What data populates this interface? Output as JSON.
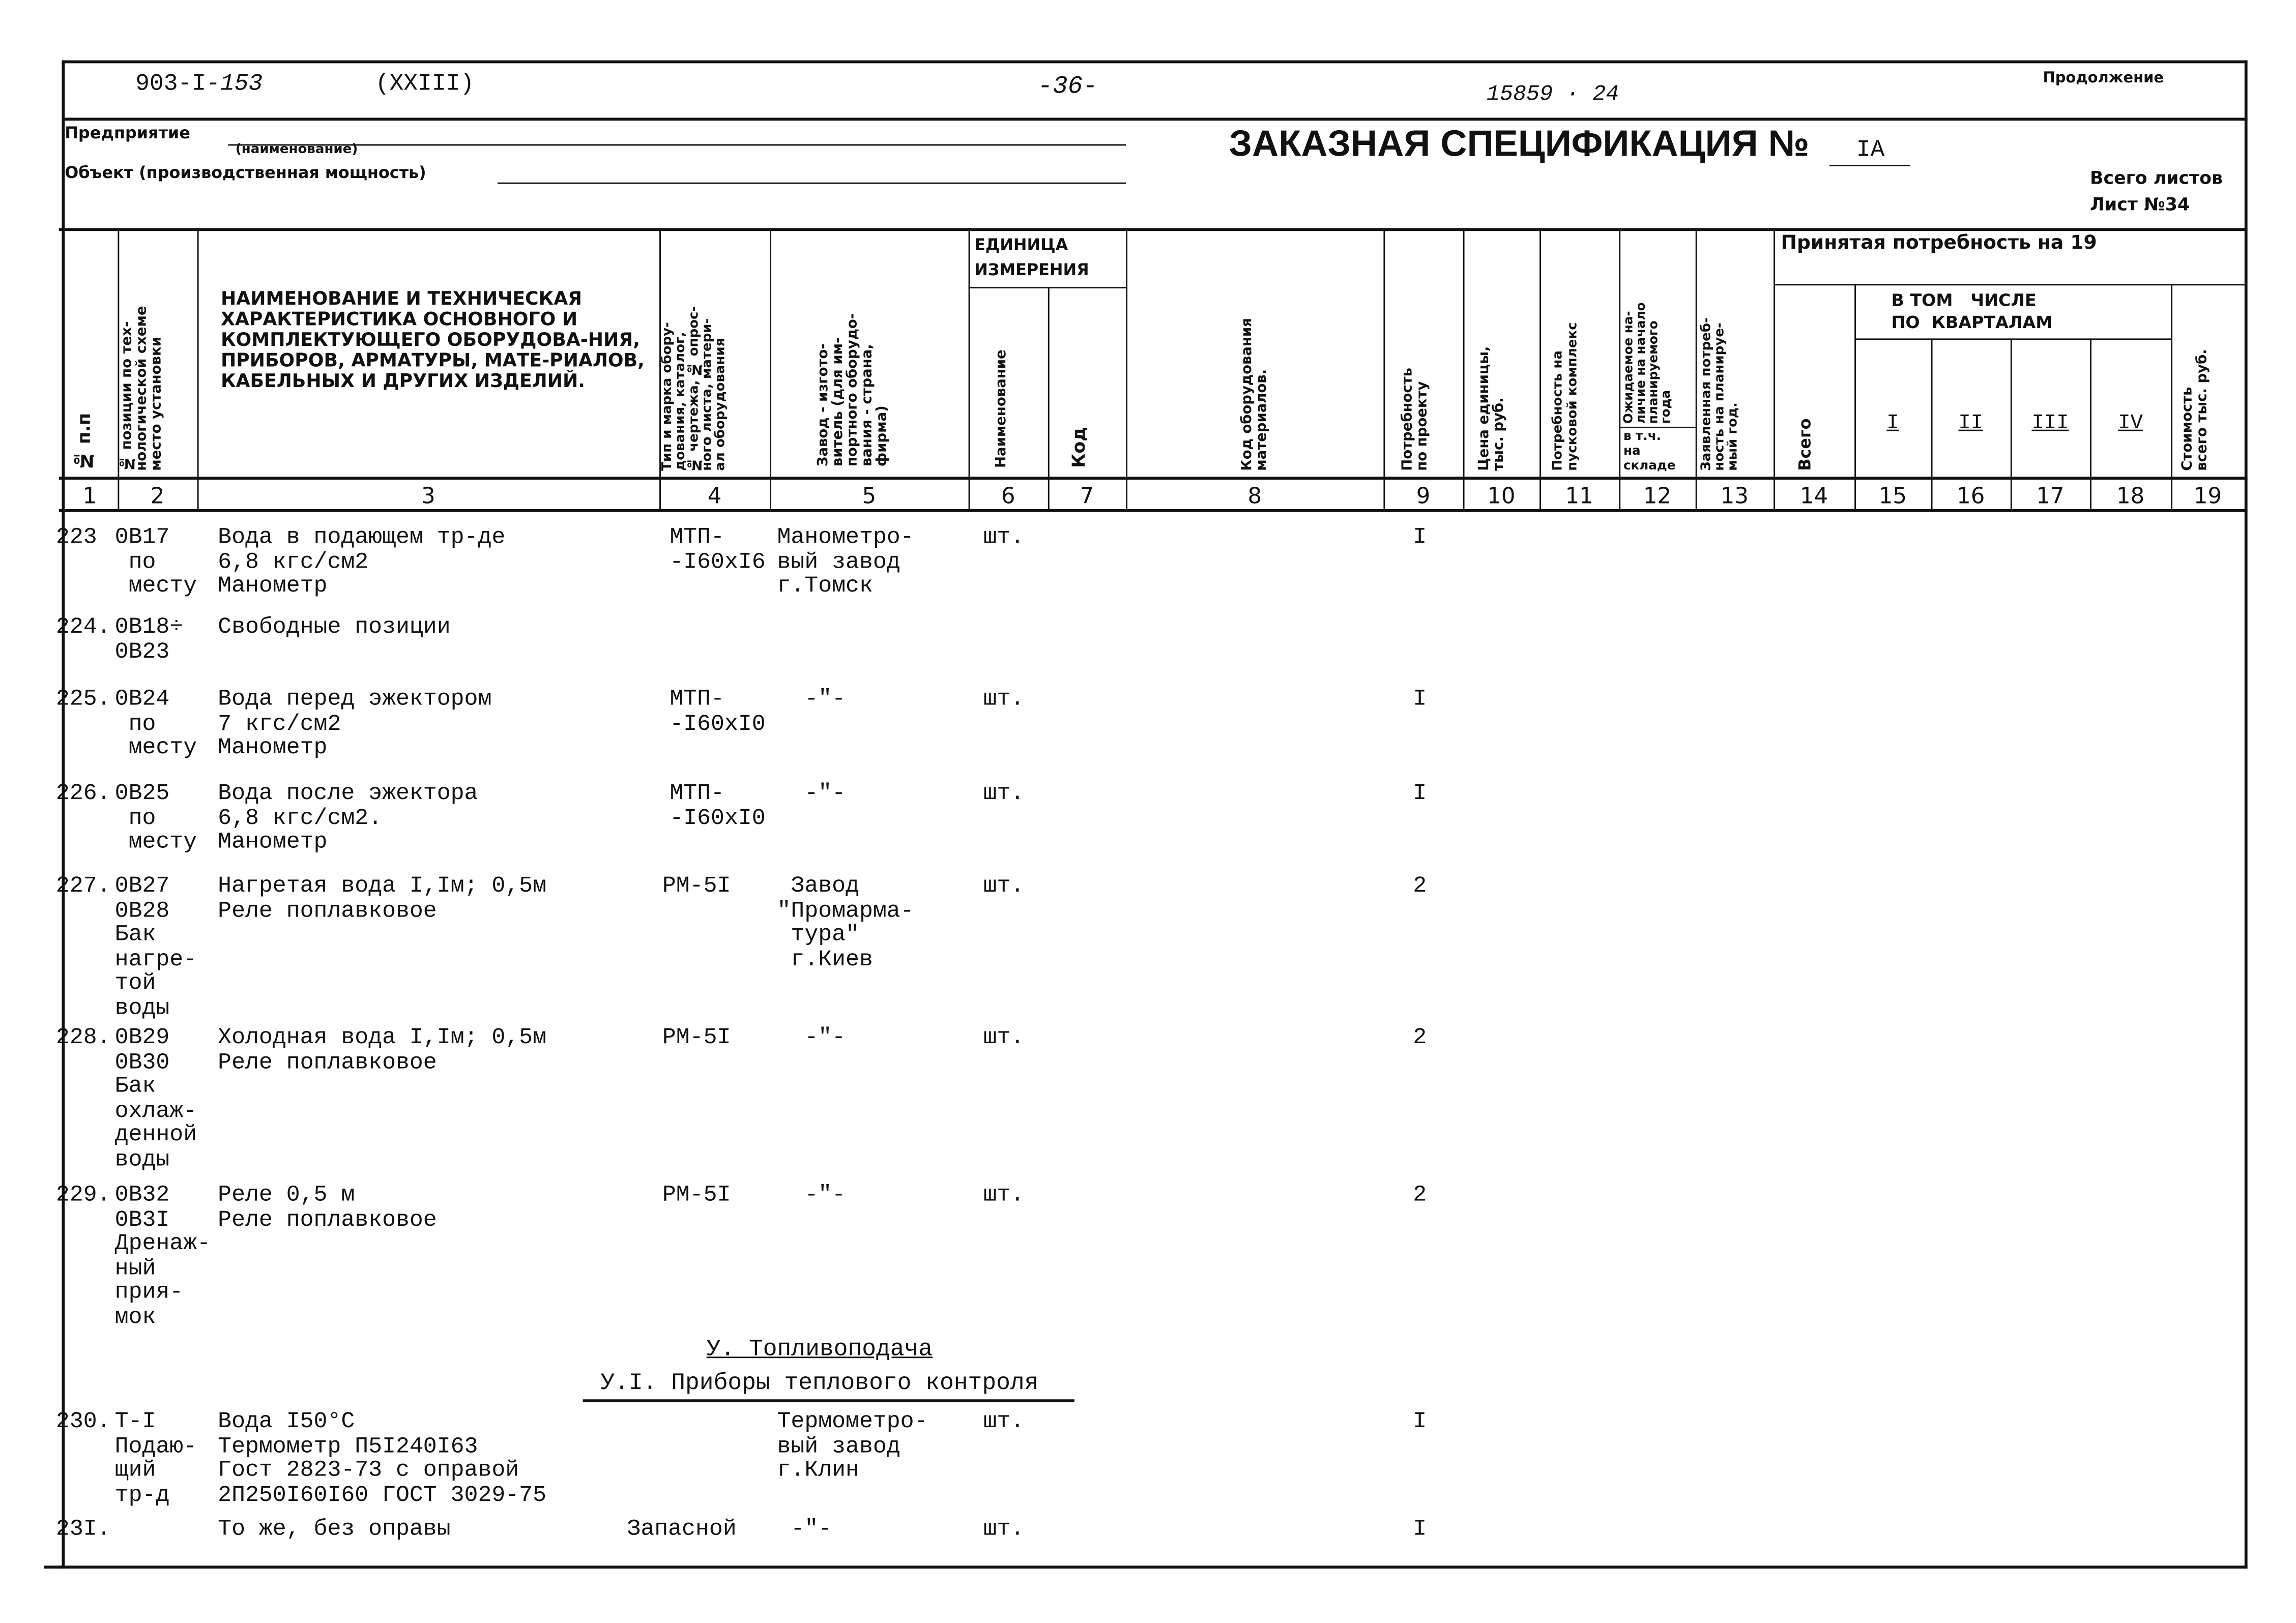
{
  "header": {
    "doc_code": "903-I-",
    "doc_code_hand": "153",
    "volume": "(XXIII)",
    "page": "-36-",
    "inv": "15859 · 24",
    "continuation": "Продолжение",
    "enterprise_label": "Предприятие",
    "enterprise_caption": "(наименование)",
    "object_label": "Объект  (производственная мощность)",
    "title": "ЗАКАЗНАЯ СПЕЦИФИКАЦИЯ №",
    "spec_no": "IA",
    "sheets_total": "Всего листов",
    "sheet_label": "Лист №",
    "sheet_no": "34"
  },
  "columns": {
    "c1": "№ п.п",
    "c2": "№ позиции по тех-\nнологической схеме\nместо установки",
    "c3": "НАИМЕНОВАНИЕ И ТЕХНИЧЕСКАЯ ХАРАКТЕРИСТИКА ОСНОВНОГО И КОМПЛЕКТУЮЩЕГО ОБОРУДОВА-НИЯ, ПРИБОРОВ, АРМАТУРЫ, МАТЕ-РИАЛОВ, КАБЕЛЬНЫХ И ДРУГИХ ИЗДЕЛИЙ.",
    "c4": "Тип и марка обору-\nдования, каталог,\n№ чертежа, № опрос-\nного листа, матери-\nал оборудования",
    "c5": "Завод - изгото-\nвитель (для им-\nпортного оборудо-\nвания - страна,\nфирма)",
    "unit": "ЕДИНИЦА ИЗМЕРЕНИЯ",
    "c6": "Наименование",
    "c7": "Код",
    "c8": "Код оборудования\nматериалов.",
    "c9": "Потребность\nпо проекту",
    "c10": "Цена единицы,\nтыс. руб.",
    "c11": "Потребность на\nпусковой комплекс",
    "c12": "Ожидаемое на-\nличие на начало\nпланируемого\nгода",
    "c12b": "в т.ч.\nна\nскладе",
    "c13": "Заявленная потреб-\nность на планируе-\nмый год.",
    "accepted": "Принятая потребность на 19",
    "c14": "Всего",
    "quarters_label": "В ТОМ   ЧИСЛЕ\nПО  КВАРТАЛАМ",
    "q": [
      "I",
      "II",
      "III",
      "IV"
    ],
    "c19": "Стоимость\nвсего тыс. руб.",
    "numbers": [
      "1",
      "2",
      "3",
      "4",
      "5",
      "6",
      "7",
      "8",
      "9",
      "10",
      "11",
      "12",
      "13",
      "14",
      "15",
      "16",
      "17",
      "18",
      "19"
    ]
  },
  "rows": [
    {
      "n": "223",
      "pos": "0B17\n по\n месту",
      "name": "Вода в подающем тр-де\n6,8 кгс/см2\nМанометр",
      "type": "МТП-\n-I60xI6",
      "maker": "Манометро-\nвый завод\nг.Томск",
      "unit": "шт.",
      "qty": "I"
    },
    {
      "n": "224.",
      "pos": "0B18÷\n0B23",
      "name": "Свободные позиции",
      "type": "",
      "maker": "",
      "unit": "",
      "qty": ""
    },
    {
      "n": "225.",
      "pos": "0B24\n по\n месту",
      "name": "Вода перед эжектором\n7 кгс/см2\nМанометр",
      "type": "МТП-\n-I60xI0",
      "maker": "  -\"-",
      "unit": "шт.",
      "qty": "I"
    },
    {
      "n": "226.",
      "pos": "0B25\n по\n месту",
      "name": "Вода после эжектора\n6,8 кгс/см2.\nМанометр",
      "type": "МТП-\n-I60xI0",
      "maker": "  -\"-",
      "unit": "шт.",
      "qty": "I"
    },
    {
      "n": "227.",
      "pos": "0B27\n0B28\nБак\nнагре-\nтой\nводы",
      "name": "Нагретая вода I,Iм; 0,5м\nРеле поплавковое",
      "type": "РМ-5I",
      "maker": " Завод\n\"Промарма-\n тура\"\n г.Киев",
      "unit": "шт.",
      "qty": "2"
    },
    {
      "n": "228.",
      "pos": "0B29\n0B30\nБак\nохлаж-\nденной\nводы",
      "name": "Холодная вода I,Iм; 0,5м\nРеле поплавковое",
      "type": "РМ-5I",
      "maker": "  -\"-",
      "unit": "шт.",
      "qty": "2"
    },
    {
      "n": "229.",
      "pos": "0B32\n0B3I\nДренаж-\nный\nприя-\nмок",
      "name": "Реле 0,5 м\nРеле поплавковое",
      "type": "РМ-5I",
      "maker": "  -\"-",
      "unit": "шт.",
      "qty": "2"
    },
    {
      "n": "230.",
      "pos": "Т-I\nПодаю-\nщий\nтр-д",
      "name": "Вода I50°С\nТермометр П5I240I63\nГост 2823-73 с оправой\n2П250I60I60 ГОСТ 3029-75",
      "type": "",
      "maker": "Термометро-\nвый завод\nг.Клин",
      "unit": "шт.",
      "qty": "I"
    },
    {
      "n": "23I.",
      "pos": "",
      "name": "То же, без оправы",
      "type": "Запасной",
      "maker": " -\"-",
      "unit": "шт.",
      "qty": "I"
    }
  ],
  "sections": {
    "s1": "У. Топливоподача",
    "s2": "У.I. Приборы теплового контроля"
  }
}
